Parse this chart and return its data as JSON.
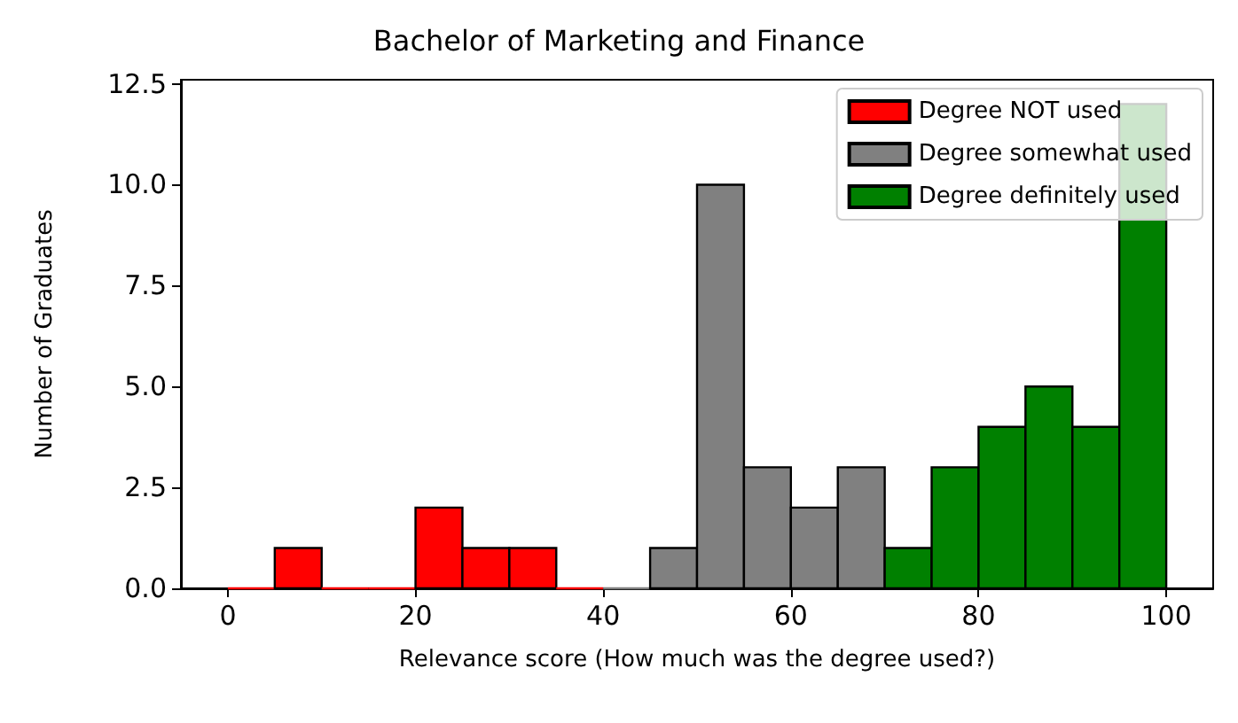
{
  "chart_data": {
    "type": "histogram",
    "title": "Bachelor of Marketing and Finance",
    "xlabel": "Relevance score (How much was the degree used?)",
    "ylabel": "Number of Graduates",
    "bins": [
      0,
      5,
      10,
      15,
      20,
      25,
      30,
      35,
      40,
      45,
      50,
      55,
      60,
      65,
      70,
      75,
      80,
      85,
      90,
      95,
      100
    ],
    "series": [
      {
        "name": "Degree NOT used",
        "color": "#ff0000",
        "values": [
          0,
          1,
          0,
          0,
          2,
          1,
          1,
          0,
          null,
          null,
          null,
          null,
          null,
          null,
          null,
          null,
          null,
          null,
          null,
          null
        ]
      },
      {
        "name": "Degree somewhat used",
        "color": "#808080",
        "values": [
          null,
          null,
          null,
          null,
          null,
          null,
          null,
          null,
          0,
          1,
          10,
          3,
          2,
          3,
          null,
          null,
          null,
          null,
          null,
          null
        ]
      },
      {
        "name": "Degree definitely used",
        "color": "#008000",
        "values": [
          null,
          null,
          null,
          null,
          null,
          null,
          null,
          null,
          null,
          null,
          null,
          null,
          null,
          null,
          1,
          3,
          4,
          5,
          4,
          12
        ]
      }
    ],
    "xlim": [
      -5,
      105
    ],
    "xticks": [
      0,
      20,
      40,
      60,
      80,
      100
    ],
    "ylim": [
      0,
      12.6
    ],
    "yticks": [
      {
        "value": 0,
        "label": "0.0"
      },
      {
        "value": 2.5,
        "label": "2.5"
      },
      {
        "value": 5,
        "label": "5.0"
      },
      {
        "value": 7.5,
        "label": "7.5"
      },
      {
        "value": 10,
        "label": "10.0"
      },
      {
        "value": 12.5,
        "label": "12.5"
      }
    ],
    "grid": false,
    "legend": "top right"
  }
}
